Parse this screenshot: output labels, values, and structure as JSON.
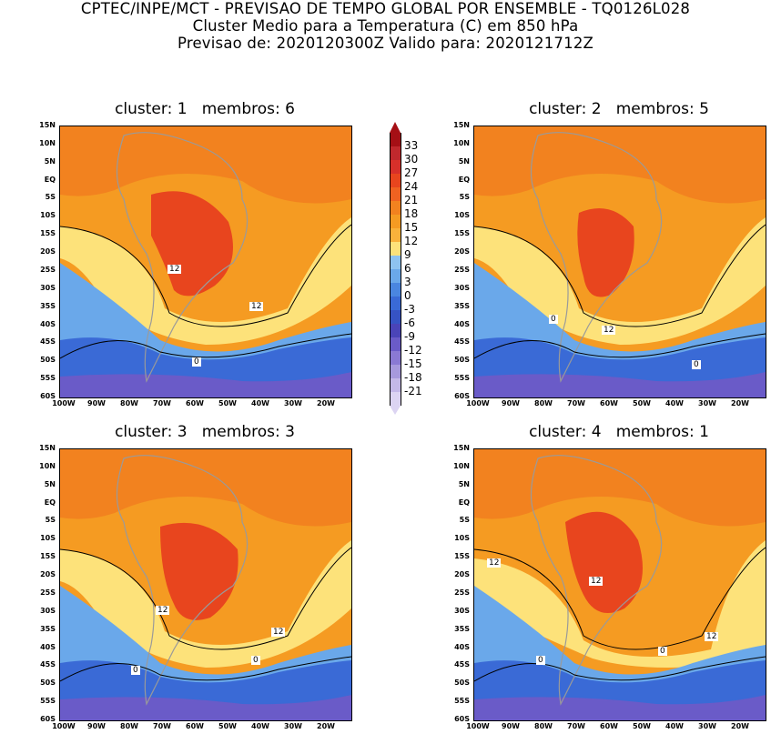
{
  "header": {
    "line1": "CPTEC/INPE/MCT - PREVISAO DE TEMPO GLOBAL POR ENSEMBLE - TQ0126L028",
    "line2": "Cluster Medio para a Temperatura (C) em 850 hPa",
    "line3": "Previsao de: 2020120300Z   Valido para: 2020121712Z"
  },
  "panels": [
    {
      "title": "cluster: 1   membros: 6",
      "contour_labels": [
        "12",
        "12",
        "0"
      ]
    },
    {
      "title": "cluster: 2   membros: 5",
      "contour_labels": [
        "0",
        "12",
        "0"
      ]
    },
    {
      "title": "cluster: 3   membros: 3",
      "contour_labels": [
        "12",
        "12",
        "0",
        "0"
      ]
    },
    {
      "title": "cluster: 4   membros: 1",
      "contour_labels": [
        "12",
        "12",
        "12",
        "0",
        "0"
      ]
    }
  ],
  "axes": {
    "lat_labels": [
      "15N",
      "10N",
      "5N",
      "EQ",
      "5S",
      "10S",
      "15S",
      "20S",
      "25S",
      "30S",
      "35S",
      "40S",
      "45S",
      "50S",
      "55S",
      "60S"
    ],
    "lon_labels": [
      "100W",
      "90W",
      "80W",
      "70W",
      "60W",
      "50W",
      "40W",
      "30W",
      "20W"
    ]
  },
  "colorbar": {
    "labels": [
      "33",
      "30",
      "27",
      "24",
      "21",
      "18",
      "15",
      "12",
      "9",
      "6",
      "3",
      "0",
      "-3",
      "-6",
      "-9",
      "-12",
      "-15",
      "-18",
      "-21"
    ],
    "colors": [
      "#a50f15",
      "#c0282d",
      "#d7302a",
      "#e8451e",
      "#f06221",
      "#f2821f",
      "#f59b22",
      "#f9b23b",
      "#fde27a",
      "#8ec3f0",
      "#6aa8ea",
      "#4a86e0",
      "#3a6ad6",
      "#3653c4",
      "#4a44b8",
      "#6a5bc8",
      "#8a79d4",
      "#a799dd",
      "#c4b8e8",
      "#dcd4f2"
    ]
  },
  "colors": {
    "warm_band": "#f59b22",
    "hot_core": "#e8451e",
    "mild": "#fde27a",
    "cool": "#6aa8ea",
    "cold": "#3a6ad6",
    "polar": "#6a5bc8",
    "land_outline": "#9a9a9a",
    "contour": "#000000"
  }
}
